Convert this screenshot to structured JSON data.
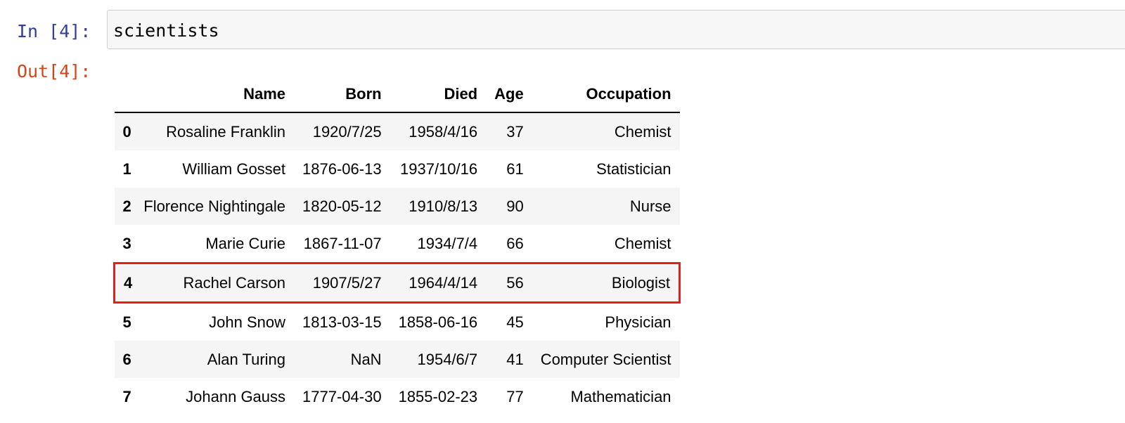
{
  "input_cell": {
    "prompt": "In [4]:",
    "code": "scientists"
  },
  "output_cell": {
    "prompt": "Out[4]:"
  },
  "dataframe": {
    "columns": [
      "Name",
      "Born",
      "Died",
      "Age",
      "Occupation"
    ],
    "highlighted_row_index": 4,
    "highlight_color": "#e41d1d",
    "rows": [
      {
        "index": "0",
        "cells": [
          "Rosaline Franklin",
          "1920/7/25",
          "1958/4/16",
          "37",
          "Chemist"
        ]
      },
      {
        "index": "1",
        "cells": [
          "William Gosset",
          "1876-06-13",
          "1937/10/16",
          "61",
          "Statistician"
        ]
      },
      {
        "index": "2",
        "cells": [
          "Florence Nightingale",
          "1820-05-12",
          "1910/8/13",
          "90",
          "Nurse"
        ]
      },
      {
        "index": "3",
        "cells": [
          "Marie Curie",
          "1867-11-07",
          "1934/7/4",
          "66",
          "Chemist"
        ]
      },
      {
        "index": "4",
        "cells": [
          "Rachel Carson",
          "1907/5/27",
          "1964/4/14",
          "56",
          "Biologist"
        ]
      },
      {
        "index": "5",
        "cells": [
          "John Snow",
          "1813-03-15",
          "1858-06-16",
          "45",
          "Physician"
        ]
      },
      {
        "index": "6",
        "cells": [
          "Alan Turing",
          "NaN",
          "1954/6/7",
          "41",
          "Computer Scientist"
        ]
      },
      {
        "index": "7",
        "cells": [
          "Johann Gauss",
          "1777-04-30",
          "1855-02-23",
          "77",
          "Mathematician"
        ]
      }
    ]
  }
}
